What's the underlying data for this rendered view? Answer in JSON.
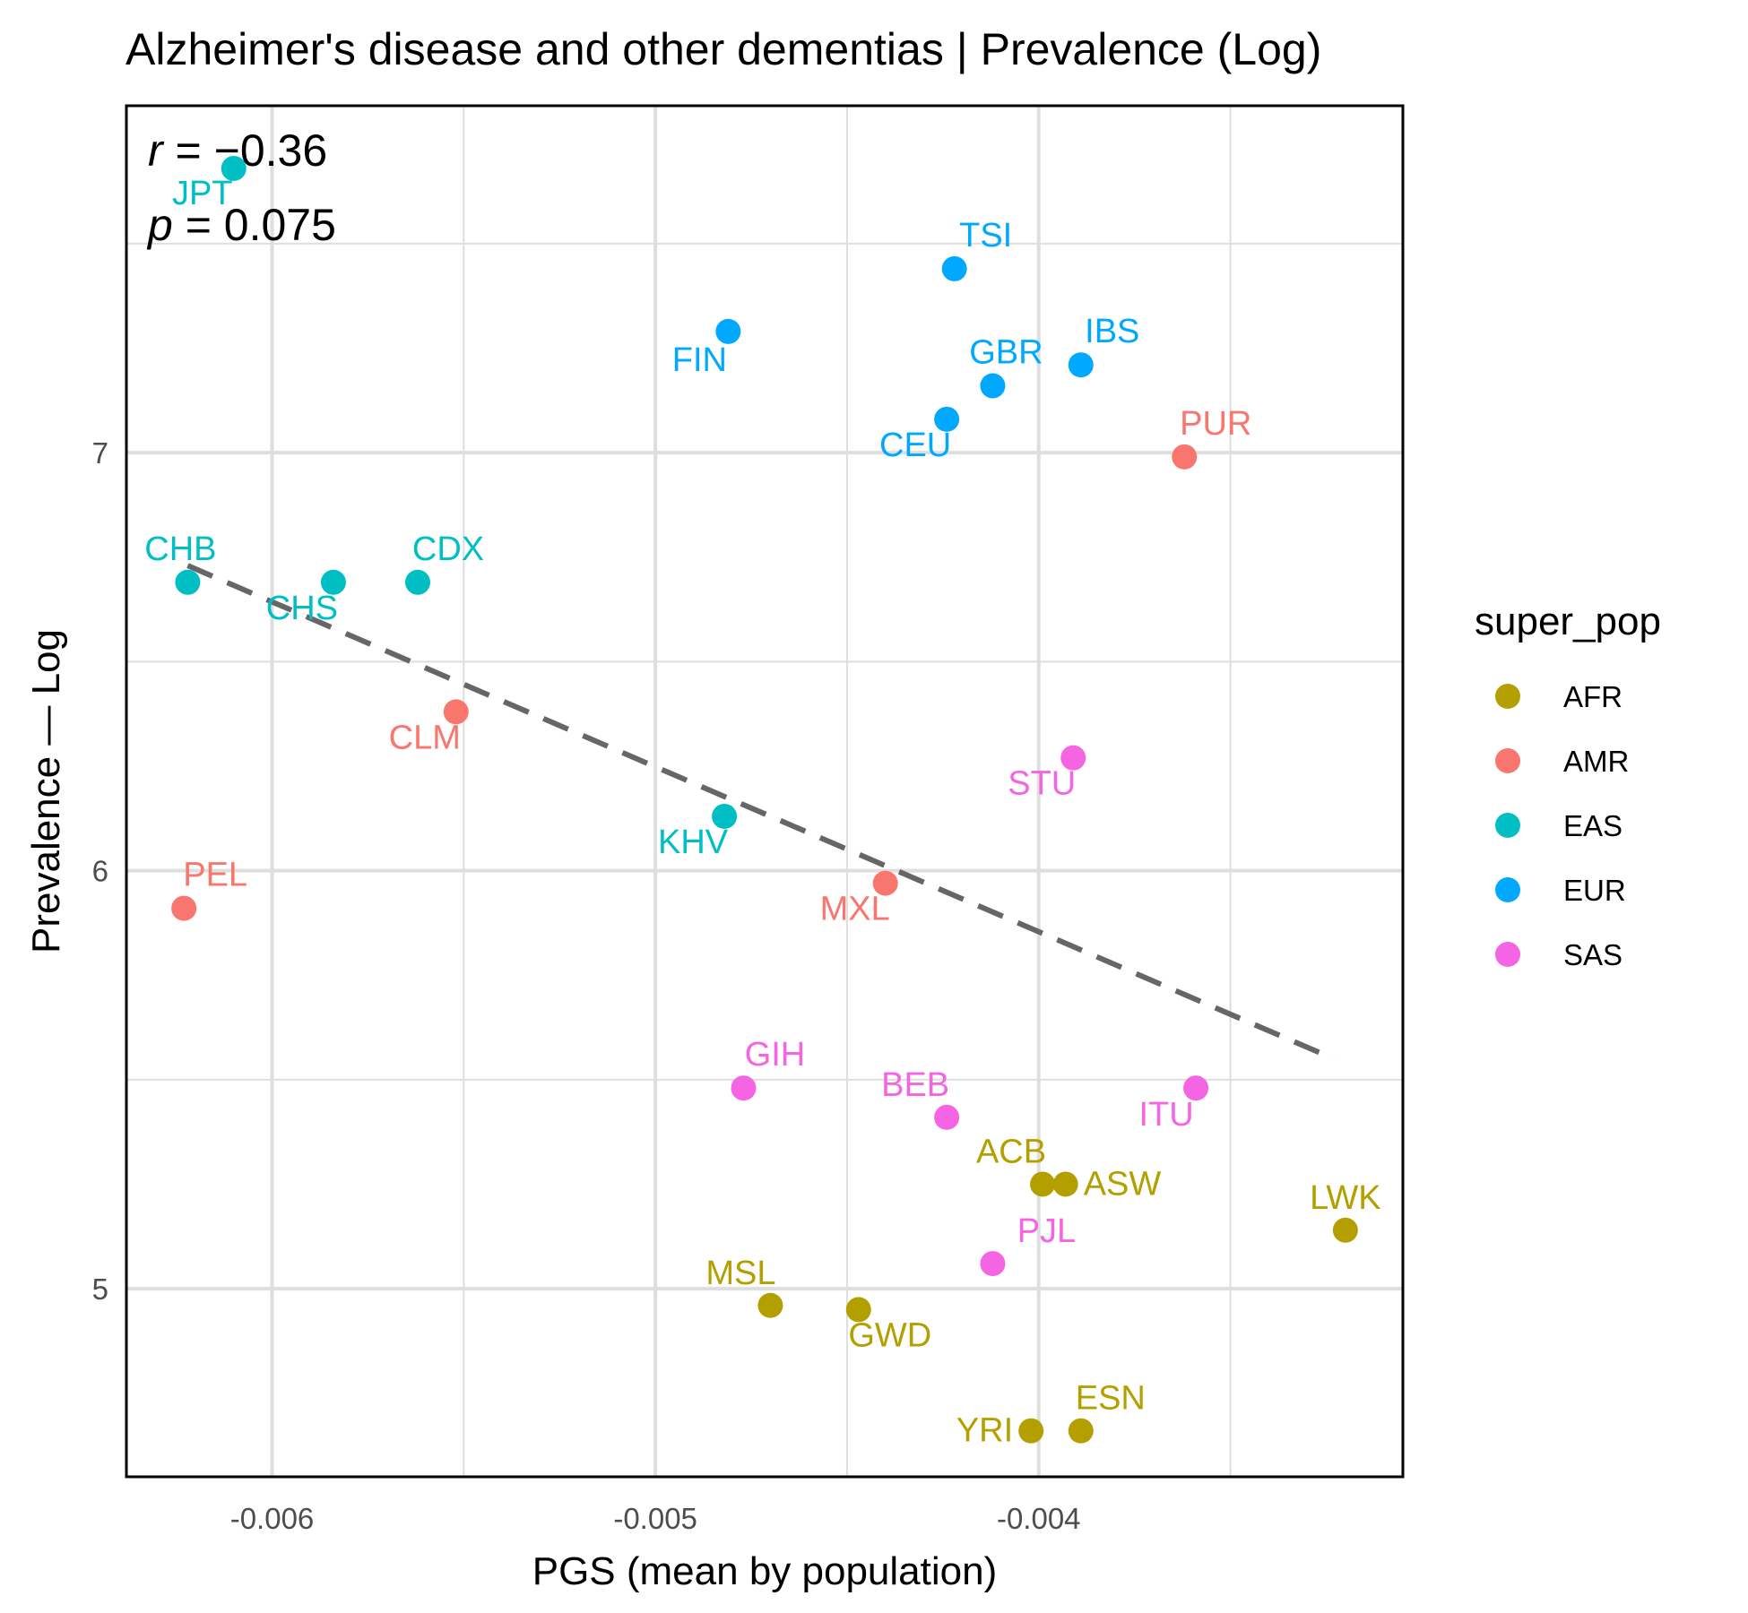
{
  "chart_data": {
    "type": "scatter",
    "title": "Alzheimer's disease and other dementias | Prevalence (Log)",
    "xlabel": "PGS (mean by population)",
    "ylabel": "Prevalence — Log",
    "xlim": [
      -0.00638,
      -0.00305
    ],
    "ylim": [
      4.55,
      7.83
    ],
    "x_ticks": [
      -0.006,
      -0.005,
      -0.004
    ],
    "x_tick_labels": [
      "-0.006",
      "-0.005",
      "-0.004"
    ],
    "y_ticks": [
      5,
      6,
      7
    ],
    "y_tick_labels": [
      "5",
      "6",
      "7"
    ],
    "grid": true,
    "legend": {
      "title": "super_pop",
      "placement": "right",
      "entries": [
        {
          "name": "AFR",
          "color": "#b3a000"
        },
        {
          "name": "AMR",
          "color": "#f8766d"
        },
        {
          "name": "EAS",
          "color": "#00bfc4"
        },
        {
          "name": "EUR",
          "color": "#00a9ff"
        },
        {
          "name": "SAS",
          "color": "#f564e3"
        }
      ]
    },
    "annotation": {
      "r_symbol": "r",
      "r_value": " = −0.36",
      "p_symbol": "p",
      "p_value": " = 0.075"
    },
    "trend_line": {
      "style": "dashed",
      "color": "#666666",
      "x": [
        -0.00622,
        -0.00323
      ],
      "y": [
        6.73,
        5.55
      ]
    },
    "points": [
      {
        "label": "JPT",
        "super_pop": "EAS",
        "x": -0.0061,
        "y": 7.68
      },
      {
        "label": "TSI",
        "super_pop": "EUR",
        "x": -0.00422,
        "y": 7.44
      },
      {
        "label": "FIN",
        "super_pop": "EUR",
        "x": -0.00481,
        "y": 7.29
      },
      {
        "label": "IBS",
        "super_pop": "EUR",
        "x": -0.00389,
        "y": 7.21
      },
      {
        "label": "GBR",
        "super_pop": "EUR",
        "x": -0.00412,
        "y": 7.16
      },
      {
        "label": "CEU",
        "super_pop": "EUR",
        "x": -0.00424,
        "y": 7.08
      },
      {
        "label": "PUR",
        "super_pop": "AMR",
        "x": -0.00362,
        "y": 6.99
      },
      {
        "label": "CHB",
        "super_pop": "EAS",
        "x": -0.00622,
        "y": 6.69
      },
      {
        "label": "CHS",
        "super_pop": "EAS",
        "x": -0.00584,
        "y": 6.69
      },
      {
        "label": "CDX",
        "super_pop": "EAS",
        "x": -0.00562,
        "y": 6.69
      },
      {
        "label": "CLM",
        "super_pop": "AMR",
        "x": -0.00552,
        "y": 6.38
      },
      {
        "label": "STU",
        "super_pop": "SAS",
        "x": -0.00391,
        "y": 6.27
      },
      {
        "label": "KHV",
        "super_pop": "EAS",
        "x": -0.00482,
        "y": 6.13
      },
      {
        "label": "MXL",
        "super_pop": "AMR",
        "x": -0.0044,
        "y": 5.97
      },
      {
        "label": "PEL",
        "super_pop": "AMR",
        "x": -0.00623,
        "y": 5.91
      },
      {
        "label": "GIH",
        "super_pop": "SAS",
        "x": -0.00477,
        "y": 5.48
      },
      {
        "label": "ITU",
        "super_pop": "SAS",
        "x": -0.00359,
        "y": 5.48
      },
      {
        "label": "BEB",
        "super_pop": "SAS",
        "x": -0.00424,
        "y": 5.41
      },
      {
        "label": "ACB",
        "super_pop": "AFR",
        "x": -0.00399,
        "y": 5.25
      },
      {
        "label": "ASW",
        "super_pop": "AFR",
        "x": -0.00393,
        "y": 5.25
      },
      {
        "label": "LWK",
        "super_pop": "AFR",
        "x": -0.0032,
        "y": 5.14
      },
      {
        "label": "PJL",
        "super_pop": "SAS",
        "x": -0.00412,
        "y": 5.06
      },
      {
        "label": "MSL",
        "super_pop": "AFR",
        "x": -0.0047,
        "y": 4.96
      },
      {
        "label": "GWD",
        "super_pop": "AFR",
        "x": -0.00447,
        "y": 4.95
      },
      {
        "label": "YRI",
        "super_pop": "AFR",
        "x": -0.00402,
        "y": 4.66
      },
      {
        "label": "ESN",
        "super_pop": "AFR",
        "x": -0.00389,
        "y": 4.66
      }
    ]
  }
}
